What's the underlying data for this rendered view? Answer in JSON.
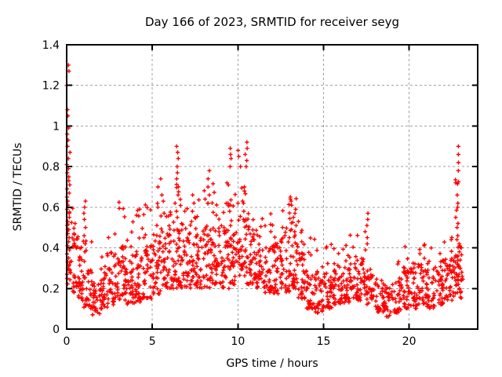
{
  "window": {
    "background_color": "#ffffff"
  },
  "chart_data": {
    "type": "scatter",
    "title": "Day 166 of 2023, SRMTID for receiver seyg",
    "xlabel": "GPS time / hours",
    "ylabel": "SRMTID / TECUs",
    "xlim": [
      0,
      24
    ],
    "ylim": [
      0,
      1.4
    ],
    "xticks": [
      0,
      5,
      10,
      15,
      20
    ],
    "xtick_labels": [
      "0",
      "5",
      "10",
      "15",
      "20"
    ],
    "yticks": [
      0,
      0.2,
      0.4,
      0.6,
      0.8,
      1.0,
      1.2,
      1.4
    ],
    "ytick_labels": [
      "0",
      "0.2",
      "0.4",
      "0.6",
      "0.8",
      "1",
      "1.2",
      "1.4"
    ],
    "grid": true,
    "grid_color": "#a0a0a0",
    "grid_dash": "3,3",
    "legend": false,
    "marker": "plus",
    "marker_color": "#ff0000",
    "marker_size_px": 5,
    "axis_color": "#000000",
    "series_name": "SRMTID",
    "cloud_bins_columns": [
      "x_start",
      "x_end",
      "y_min",
      "y_max",
      "count"
    ],
    "cloud_bins": [
      [
        0.05,
        0.35,
        0.22,
        0.6,
        16
      ],
      [
        0.35,
        0.7,
        0.18,
        0.5,
        24
      ],
      [
        0.7,
        1.0,
        0.14,
        0.42,
        26
      ],
      [
        1.0,
        1.5,
        0.1,
        0.3,
        30
      ],
      [
        1.5,
        2.0,
        0.07,
        0.24,
        30
      ],
      [
        2.0,
        2.5,
        0.1,
        0.3,
        32
      ],
      [
        2.5,
        3.0,
        0.12,
        0.34,
        32
      ],
      [
        3.0,
        3.5,
        0.14,
        0.4,
        34
      ],
      [
        3.5,
        4.0,
        0.12,
        0.36,
        34
      ],
      [
        4.0,
        4.5,
        0.13,
        0.38,
        34
      ],
      [
        4.5,
        5.0,
        0.15,
        0.42,
        34
      ],
      [
        5.0,
        5.5,
        0.17,
        0.45,
        34
      ],
      [
        5.5,
        6.0,
        0.2,
        0.5,
        34
      ],
      [
        6.0,
        6.5,
        0.2,
        0.5,
        32
      ],
      [
        6.5,
        7.0,
        0.2,
        0.5,
        32
      ],
      [
        7.0,
        7.5,
        0.2,
        0.46,
        34
      ],
      [
        7.5,
        8.0,
        0.2,
        0.48,
        34
      ],
      [
        8.0,
        8.5,
        0.2,
        0.5,
        34
      ],
      [
        8.5,
        9.0,
        0.22,
        0.52,
        34
      ],
      [
        9.0,
        9.5,
        0.2,
        0.5,
        34
      ],
      [
        9.5,
        10.0,
        0.22,
        0.52,
        34
      ],
      [
        10.0,
        10.5,
        0.25,
        0.55,
        34
      ],
      [
        10.5,
        11.0,
        0.22,
        0.5,
        34
      ],
      [
        11.0,
        11.5,
        0.2,
        0.46,
        34
      ],
      [
        11.5,
        12.0,
        0.18,
        0.42,
        34
      ],
      [
        12.0,
        12.5,
        0.17,
        0.42,
        34
      ],
      [
        12.5,
        13.0,
        0.18,
        0.46,
        34
      ],
      [
        13.0,
        13.5,
        0.2,
        0.48,
        34
      ],
      [
        13.5,
        14.0,
        0.15,
        0.4,
        34
      ],
      [
        14.0,
        14.5,
        0.1,
        0.3,
        32
      ],
      [
        14.5,
        15.0,
        0.08,
        0.27,
        30
      ],
      [
        15.0,
        15.5,
        0.1,
        0.28,
        32
      ],
      [
        15.5,
        16.0,
        0.12,
        0.32,
        32
      ],
      [
        16.0,
        16.5,
        0.13,
        0.34,
        34
      ],
      [
        16.5,
        17.0,
        0.15,
        0.36,
        34
      ],
      [
        17.0,
        17.5,
        0.14,
        0.35,
        32
      ],
      [
        17.5,
        18.0,
        0.12,
        0.3,
        32
      ],
      [
        18.0,
        18.5,
        0.08,
        0.25,
        30
      ],
      [
        18.5,
        19.0,
        0.06,
        0.22,
        30
      ],
      [
        19.0,
        19.5,
        0.08,
        0.25,
        30
      ],
      [
        19.5,
        20.0,
        0.1,
        0.3,
        32
      ],
      [
        20.0,
        20.5,
        0.1,
        0.3,
        32
      ],
      [
        20.5,
        21.0,
        0.12,
        0.32,
        32
      ],
      [
        21.0,
        21.5,
        0.1,
        0.3,
        32
      ],
      [
        21.5,
        22.0,
        0.12,
        0.32,
        32
      ],
      [
        22.0,
        22.5,
        0.13,
        0.35,
        32
      ],
      [
        22.5,
        23.15,
        0.15,
        0.42,
        40
      ],
      [
        0.35,
        1.0,
        0.42,
        0.62,
        6
      ],
      [
        1.0,
        1.5,
        0.3,
        0.45,
        4
      ],
      [
        2.0,
        2.5,
        0.3,
        0.5,
        5
      ],
      [
        2.5,
        3.0,
        0.34,
        0.58,
        7
      ],
      [
        3.0,
        3.5,
        0.4,
        0.65,
        7
      ],
      [
        3.5,
        4.0,
        0.36,
        0.55,
        5
      ],
      [
        4.0,
        4.5,
        0.38,
        0.62,
        7
      ],
      [
        4.5,
        5.0,
        0.42,
        0.68,
        6
      ],
      [
        5.0,
        5.5,
        0.45,
        0.65,
        5
      ],
      [
        5.5,
        6.0,
        0.5,
        0.68,
        5
      ],
      [
        6.0,
        6.5,
        0.5,
        0.75,
        5
      ],
      [
        6.5,
        7.0,
        0.5,
        0.72,
        6
      ],
      [
        7.0,
        7.5,
        0.46,
        0.6,
        5
      ],
      [
        7.5,
        8.0,
        0.48,
        0.66,
        5
      ],
      [
        8.0,
        8.5,
        0.5,
        0.7,
        5
      ],
      [
        8.5,
        9.0,
        0.52,
        0.72,
        6
      ],
      [
        9.0,
        9.5,
        0.5,
        0.62,
        4
      ],
      [
        9.5,
        10.0,
        0.52,
        0.7,
        5
      ],
      [
        10.0,
        10.5,
        0.55,
        0.7,
        4
      ],
      [
        10.5,
        11.0,
        0.5,
        0.65,
        5
      ],
      [
        11.0,
        11.5,
        0.46,
        0.6,
        4
      ],
      [
        11.5,
        12.0,
        0.42,
        0.58,
        4
      ],
      [
        12.0,
        12.5,
        0.42,
        0.6,
        4
      ],
      [
        12.5,
        13.0,
        0.46,
        0.62,
        5
      ],
      [
        13.0,
        13.5,
        0.48,
        0.65,
        8
      ],
      [
        13.5,
        14.0,
        0.4,
        0.55,
        4
      ],
      [
        14.0,
        14.5,
        0.3,
        0.45,
        4
      ],
      [
        14.5,
        15.0,
        0.27,
        0.42,
        4
      ],
      [
        15.0,
        15.5,
        0.28,
        0.42,
        4
      ],
      [
        15.5,
        16.0,
        0.32,
        0.45,
        3
      ],
      [
        16.0,
        16.5,
        0.34,
        0.45,
        3
      ],
      [
        16.5,
        17.0,
        0.36,
        0.48,
        3
      ],
      [
        19.0,
        19.5,
        0.25,
        0.35,
        3
      ],
      [
        19.5,
        20.0,
        0.3,
        0.42,
        4
      ],
      [
        20.0,
        20.5,
        0.3,
        0.4,
        3
      ],
      [
        20.5,
        21.0,
        0.32,
        0.45,
        5
      ],
      [
        21.0,
        21.5,
        0.3,
        0.4,
        3
      ],
      [
        21.5,
        22.0,
        0.32,
        0.42,
        4
      ],
      [
        22.0,
        22.5,
        0.35,
        0.46,
        4
      ]
    ],
    "spike_columns": [
      {
        "x": 0.1,
        "jitter": 0.1,
        "ys": [
          1.3,
          1.27,
          1.2,
          1.08,
          1.05,
          0.99,
          0.96,
          0.93,
          0.9,
          0.87,
          0.84,
          0.81,
          0.79,
          0.77,
          0.75,
          0.73,
          0.71,
          0.69,
          0.67,
          0.65,
          0.63,
          0.61,
          0.59,
          0.57,
          0.55,
          0.53,
          0.51,
          0.49,
          0.47,
          0.45,
          0.43,
          0.41,
          0.39,
          0.37,
          0.35,
          0.33,
          0.31,
          0.29,
          0.27,
          0.25
        ]
      },
      {
        "x": 1.05,
        "jitter": 0.08,
        "ys": [
          0.63,
          0.6,
          0.57,
          0.54,
          0.5,
          0.46,
          0.42,
          0.38
        ]
      },
      {
        "x": 5.45,
        "jitter": 0.2,
        "ys": [
          0.74,
          0.7,
          0.66,
          0.63,
          0.6
        ]
      },
      {
        "x": 6.45,
        "jitter": 0.12,
        "ys": [
          0.9,
          0.87,
          0.84,
          0.8,
          0.77,
          0.74,
          0.7,
          0.66,
          0.62,
          0.58,
          0.55
        ]
      },
      {
        "x": 7.4,
        "jitter": 0.12,
        "ys": [
          0.66,
          0.62,
          0.58,
          0.55
        ]
      },
      {
        "x": 8.3,
        "jitter": 0.1,
        "ys": [
          0.78,
          0.74,
          0.7,
          0.66,
          0.62
        ]
      },
      {
        "x": 9.5,
        "jitter": 0.15,
        "ys": [
          0.89,
          0.86,
          0.84,
          0.8,
          0.72,
          0.71,
          0.62,
          0.58
        ]
      },
      {
        "x": 10.05,
        "jitter": 0.1,
        "ys": [
          0.88,
          0.85,
          0.8,
          0.62
        ]
      },
      {
        "x": 10.45,
        "jitter": 0.15,
        "ys": [
          0.92,
          0.89,
          0.86,
          0.83,
          0.8,
          0.7,
          0.68,
          0.62,
          0.58
        ]
      },
      {
        "x": 13.3,
        "jitter": 0.25,
        "ys": [
          0.65,
          0.63,
          0.61,
          0.59,
          0.57,
          0.55,
          0.53,
          0.51,
          0.49
        ]
      },
      {
        "x": 17.5,
        "jitter": 0.1,
        "ys": [
          0.57,
          0.54,
          0.51,
          0.48,
          0.45,
          0.42,
          0.39
        ]
      },
      {
        "x": 22.8,
        "jitter": 0.1,
        "ys": [
          0.9,
          0.86,
          0.82,
          0.78,
          0.735,
          0.725,
          0.72,
          0.715,
          0.66,
          0.62,
          0.6,
          0.585,
          0.55,
          0.52,
          0.5,
          0.46,
          0.44
        ]
      },
      {
        "x": 22.95,
        "jitter": 0.15,
        "ys": [
          0.42,
          0.4,
          0.38,
          0.36,
          0.34,
          0.32,
          0.3,
          0.28,
          0.26,
          0.24,
          0.22,
          0.2,
          0.18
        ]
      }
    ]
  }
}
